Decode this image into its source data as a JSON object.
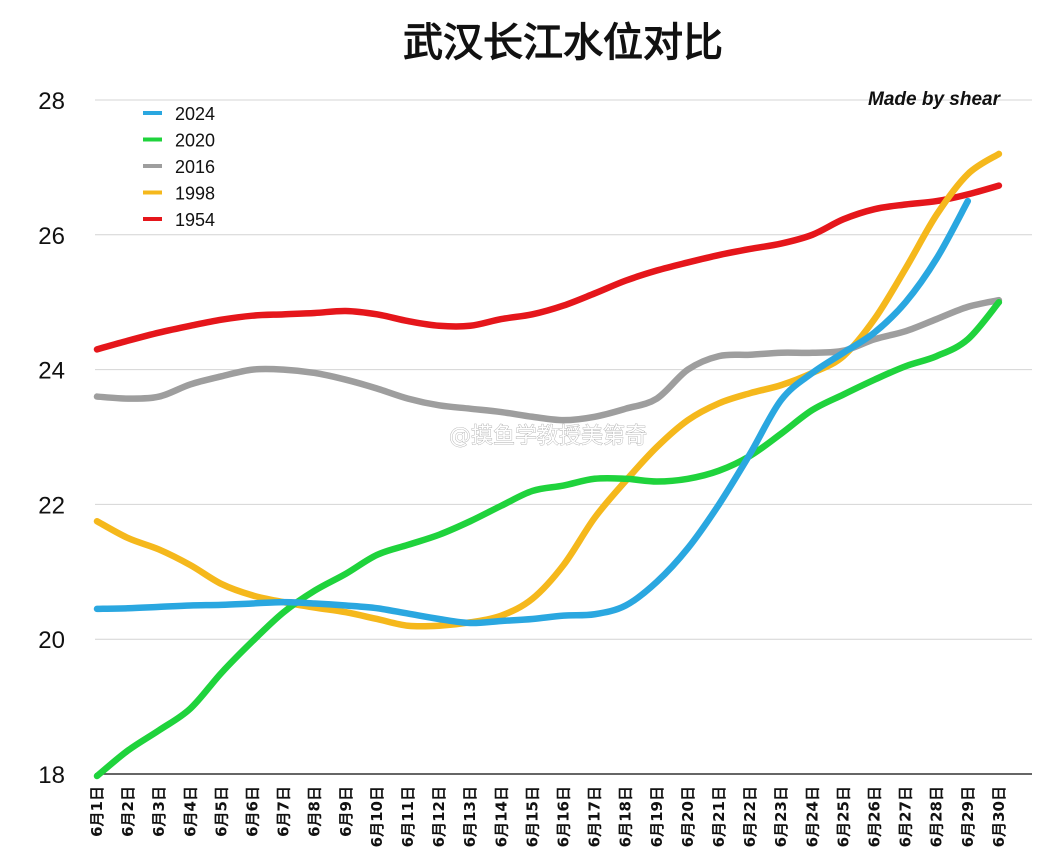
{
  "chart_data": {
    "type": "line",
    "title": "武汉长江水位对比",
    "annotation": "Made by shear",
    "watermark": "@摸鱼学教授美第奇",
    "xlabel": "",
    "ylabel": "",
    "ylim": [
      18,
      28
    ],
    "yticks": [
      18,
      20,
      22,
      24,
      26,
      28
    ],
    "grid": true,
    "legend_position": "top-left",
    "categories": [
      "6月1日",
      "6月2日",
      "6月3日",
      "6月4日",
      "6月5日",
      "6月6日",
      "6月7日",
      "6月8日",
      "6月9日",
      "6月10日",
      "6月11日",
      "6月12日",
      "6月13日",
      "6月14日",
      "6月15日",
      "6月16日",
      "6月17日",
      "6月18日",
      "6月19日",
      "6月20日",
      "6月21日",
      "6月22日",
      "6月23日",
      "6月24日",
      "6月25日",
      "6月26日",
      "6月27日",
      "6月28日",
      "6月29日",
      "6月30日"
    ],
    "series": [
      {
        "name": "2024",
        "color": "#2aa7e0",
        "values": [
          20.45,
          20.46,
          20.48,
          20.5,
          20.51,
          20.53,
          20.55,
          20.53,
          20.5,
          20.46,
          20.38,
          20.3,
          20.24,
          20.27,
          20.3,
          20.35,
          20.37,
          20.5,
          20.85,
          21.35,
          22.0,
          22.75,
          23.55,
          23.95,
          24.25,
          24.55,
          25.0,
          25.65,
          26.5,
          null
        ]
      },
      {
        "name": "2020",
        "color": "#1fd33c",
        "values": [
          17.97,
          18.35,
          18.65,
          18.97,
          19.5,
          19.97,
          20.4,
          20.72,
          20.97,
          21.25,
          21.4,
          21.55,
          21.75,
          21.98,
          22.2,
          22.28,
          22.38,
          22.38,
          22.34,
          22.38,
          22.5,
          22.72,
          23.05,
          23.4,
          23.63,
          23.85,
          24.05,
          24.2,
          24.45,
          25.0
        ]
      },
      {
        "name": "2016",
        "color": "#9e9e9e",
        "values": [
          23.6,
          23.57,
          23.6,
          23.78,
          23.9,
          24.0,
          24.0,
          23.95,
          23.85,
          23.72,
          23.57,
          23.47,
          23.42,
          23.37,
          23.3,
          23.25,
          23.3,
          23.42,
          23.57,
          24.0,
          24.2,
          24.22,
          24.25,
          24.25,
          24.28,
          24.45,
          24.57,
          24.75,
          24.93,
          25.03
        ]
      },
      {
        "name": "1998",
        "color": "#f5b81c",
        "values": [
          21.75,
          21.5,
          21.33,
          21.1,
          20.82,
          20.65,
          20.55,
          20.47,
          20.4,
          20.3,
          20.2,
          20.2,
          20.25,
          20.35,
          20.6,
          21.1,
          21.8,
          22.35,
          22.85,
          23.25,
          23.5,
          23.65,
          23.77,
          23.95,
          24.2,
          24.75,
          25.5,
          26.3,
          26.9,
          27.2
        ]
      },
      {
        "name": "1954",
        "color": "#e5161b",
        "values": [
          24.3,
          24.43,
          24.55,
          24.65,
          24.74,
          24.8,
          24.82,
          24.84,
          24.87,
          24.82,
          24.72,
          24.65,
          24.65,
          24.75,
          24.82,
          24.95,
          25.13,
          25.32,
          25.47,
          25.59,
          25.7,
          25.79,
          25.87,
          26.0,
          26.23,
          26.38,
          26.45,
          26.5,
          26.6,
          26.73
        ]
      }
    ]
  }
}
